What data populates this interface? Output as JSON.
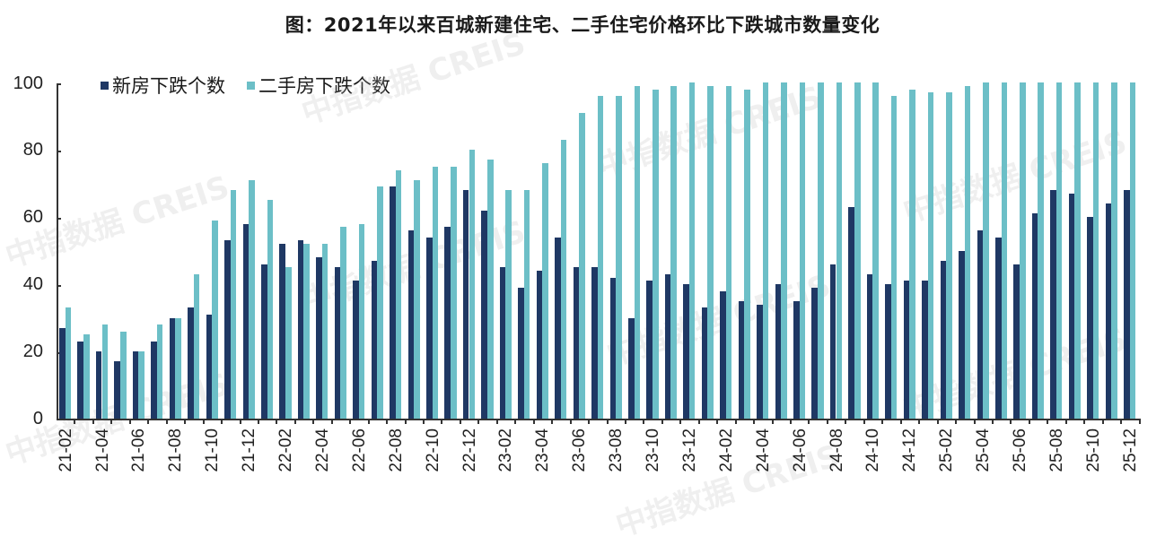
{
  "title": "图：2021年以来百城新建住宅、二手住宅价格环比下跌城市数量变化",
  "legend": [
    {
      "label": "新房下跌个数",
      "color": "#1f3864"
    },
    {
      "label": "二手房下跌个数",
      "color": "#6cbfc7"
    }
  ],
  "watermark_text": "中指数据 CREIS",
  "y_axis": {
    "ticks": [
      "0",
      "20",
      "40",
      "60",
      "80",
      "100"
    ]
  },
  "x_axis": {
    "labels": [
      "21-02",
      "21-04",
      "21-06",
      "21-08",
      "21-10",
      "21-12",
      "22-02",
      "22-04",
      "22-06",
      "22-08",
      "22-10",
      "22-12",
      "23-02",
      "23-04",
      "23-06",
      "23-08",
      "23-10",
      "23-12",
      "24-02",
      "24-04",
      "24-06",
      "24-08",
      "24-10",
      "24-12",
      "25-02",
      "25-04",
      "25-06",
      "25-08",
      "25-10",
      "25-12"
    ]
  },
  "chart_data": {
    "type": "bar",
    "title": "图：2021年以来百城新建住宅、二手住宅价格环比下跌城市数量变化",
    "xlabel": "",
    "ylabel": "",
    "ylim": [
      0,
      100
    ],
    "yticks": [
      0,
      20,
      40,
      60,
      80,
      100
    ],
    "grid": false,
    "legend_position": "top-left",
    "categories": [
      "21-02",
      "21-03",
      "21-04",
      "21-05",
      "21-06",
      "21-07",
      "21-08",
      "21-09",
      "21-10",
      "21-11",
      "21-12",
      "22-01",
      "22-02",
      "22-03",
      "22-04",
      "22-05",
      "22-06",
      "22-07",
      "22-08",
      "22-09",
      "22-10",
      "22-11",
      "22-12",
      "23-01",
      "23-02",
      "23-03",
      "23-04",
      "23-05",
      "23-06",
      "23-07",
      "23-08",
      "23-09",
      "23-10",
      "23-11",
      "23-12",
      "24-01",
      "24-02",
      "24-03",
      "24-04",
      "24-05",
      "24-06",
      "24-07",
      "24-08",
      "24-09",
      "24-10",
      "24-11",
      "24-12",
      "25-01",
      "25-02",
      "25-03",
      "25-04",
      "25-05",
      "25-06",
      "25-07",
      "25-08",
      "25-09",
      "25-10",
      "25-11",
      "25-12"
    ],
    "series": [
      {
        "name": "新房下跌个数",
        "color": "#1f3864",
        "values": [
          27,
          23,
          20,
          17,
          20,
          23,
          30,
          33,
          31,
          53,
          58,
          46,
          52,
          53,
          48,
          45,
          41,
          47,
          69,
          56,
          54,
          57,
          68,
          62,
          45,
          39,
          44,
          54,
          45,
          45,
          42,
          30,
          41,
          43,
          40,
          33,
          38,
          35,
          34,
          40,
          35,
          39,
          46,
          63,
          43,
          40,
          41,
          41,
          47,
          50,
          56,
          54,
          46,
          61,
          68,
          67,
          60,
          64,
          68
        ]
      },
      {
        "name": "二手房下跌个数",
        "color": "#6cbfc7",
        "values": [
          33,
          25,
          28,
          26,
          20,
          28,
          30,
          43,
          59,
          68,
          71,
          65,
          45,
          52,
          52,
          57,
          58,
          69,
          74,
          71,
          75,
          75,
          80,
          77,
          68,
          68,
          76,
          83,
          91,
          96,
          96,
          99,
          98,
          99,
          100,
          99,
          99,
          98,
          100,
          100,
          100,
          100,
          100,
          100,
          100,
          96,
          98,
          97,
          97,
          99,
          100,
          100,
          100,
          100,
          100,
          100,
          100,
          100,
          100
        ]
      }
    ]
  }
}
